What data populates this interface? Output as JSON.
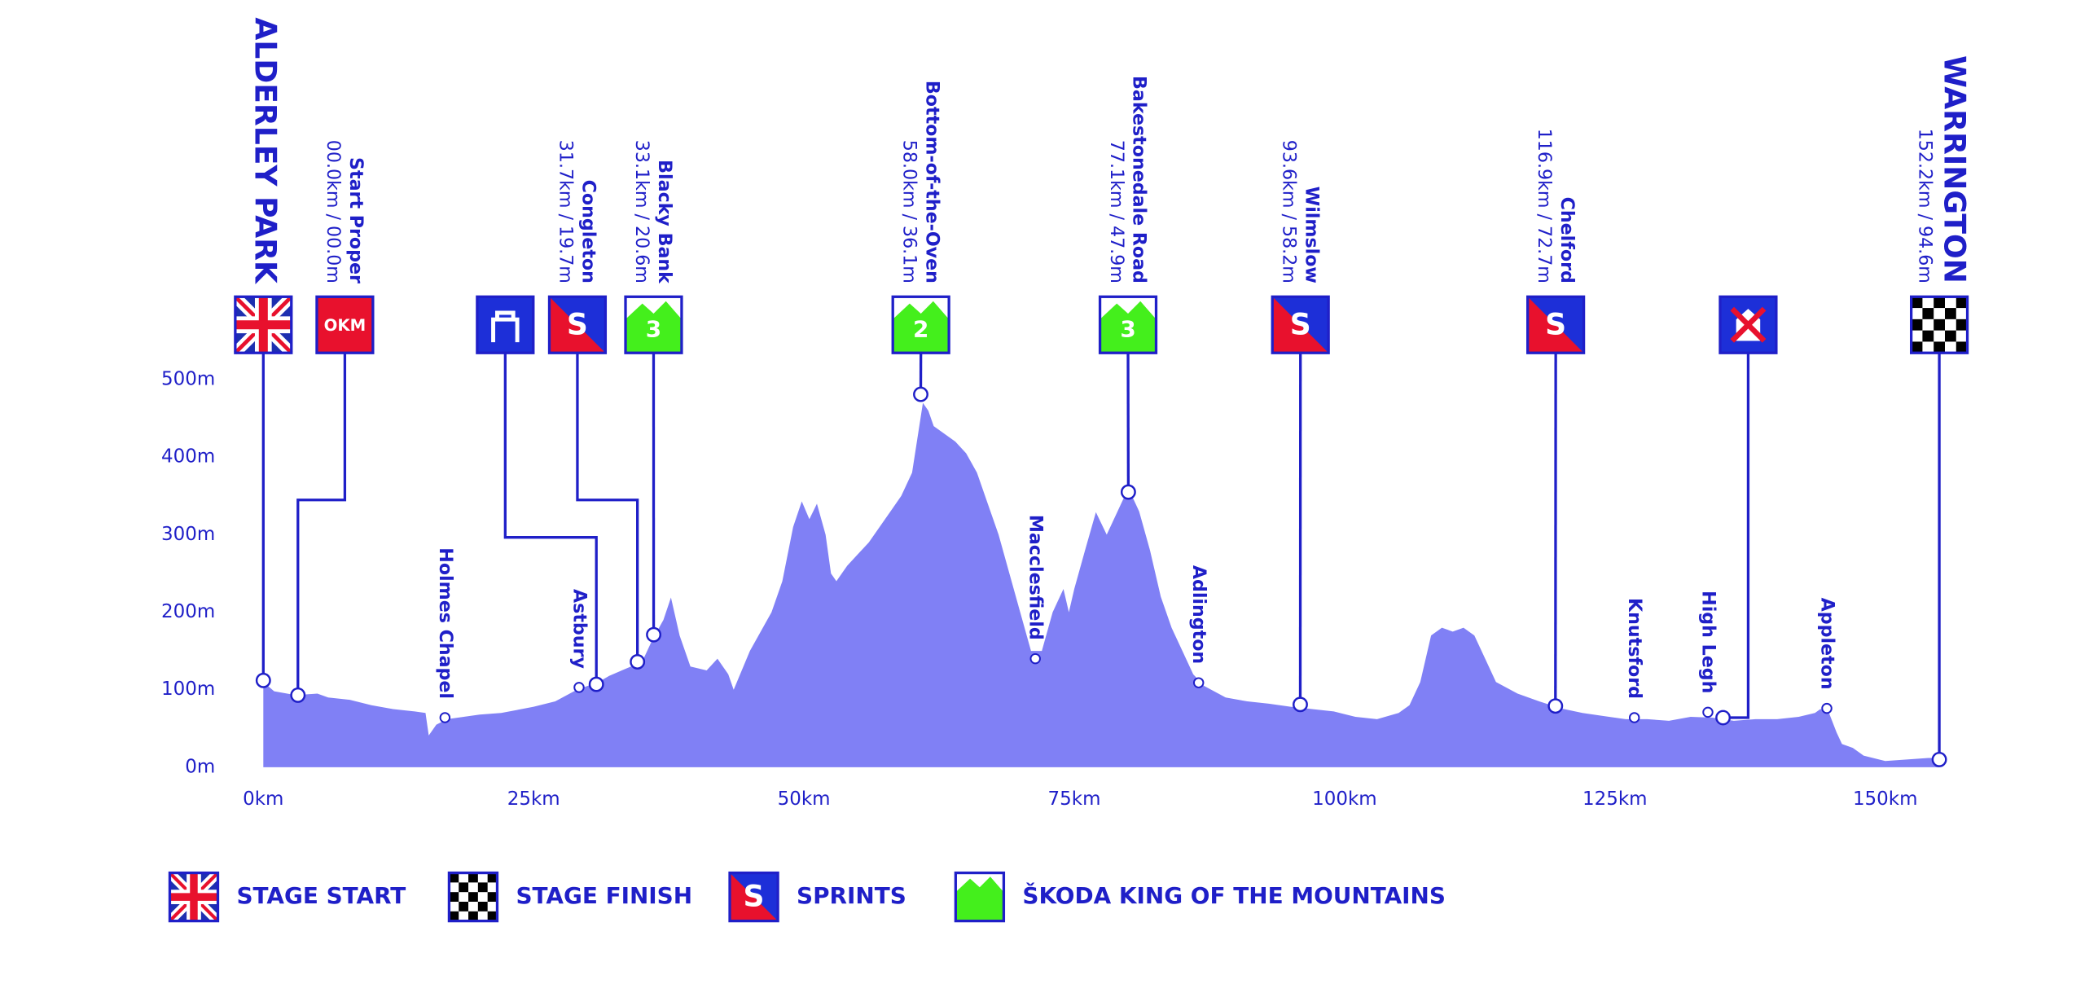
{
  "chart_data": {
    "type": "area",
    "color": "#8080f5",
    "line_color": "#1f1fc8",
    "xlim": [
      0,
      155
    ],
    "ylim": [
      0,
      500
    ],
    "xticks": [
      {
        "value": 0,
        "label": "0km"
      },
      {
        "value": 25,
        "label": "25km"
      },
      {
        "value": 50,
        "label": "50km"
      },
      {
        "value": 75,
        "label": "75km"
      },
      {
        "value": 100,
        "label": "100km"
      },
      {
        "value": 125,
        "label": "125km"
      },
      {
        "value": 150,
        "label": "150km"
      }
    ],
    "yticks": [
      {
        "value": 0,
        "label": "0m"
      },
      {
        "value": 100,
        "label": "100m"
      },
      {
        "value": 200,
        "label": "200m"
      },
      {
        "value": 300,
        "label": "300m"
      },
      {
        "value": 400,
        "label": "400m"
      },
      {
        "value": 500,
        "label": "500m"
      }
    ],
    "x": [
      0,
      1,
      3,
      5,
      6,
      8,
      10,
      12,
      14,
      15,
      15.3,
      16,
      17,
      20,
      22,
      25,
      27,
      29,
      30,
      31,
      32,
      34,
      35,
      36,
      37,
      37.7,
      38.5,
      39.5,
      41,
      42,
      43,
      43.5,
      45,
      47,
      48,
      49,
      49.8,
      50.5,
      51.2,
      52,
      52.5,
      53,
      54,
      55,
      56,
      58,
      59,
      60,
      61,
      61.5,
      62,
      63,
      64,
      65,
      66,
      67,
      68,
      69,
      70,
      71,
      72,
      73,
      74,
      74.5,
      75,
      76,
      77,
      78,
      79,
      80,
      81,
      82,
      83,
      84,
      85,
      86,
      87,
      89,
      91,
      93,
      95,
      97,
      99,
      101,
      103,
      105,
      106,
      107,
      108,
      109,
      110,
      111,
      112,
      113,
      114,
      116,
      118,
      120,
      122,
      124,
      126,
      128,
      130,
      132,
      134,
      136,
      138,
      140,
      142,
      143.5,
      144,
      144.8,
      145.5,
      146,
      147,
      148,
      150,
      152,
      154,
      155
    ],
    "values": [
      110,
      98,
      93,
      95,
      90,
      87,
      80,
      75,
      72,
      70,
      41,
      55,
      62,
      68,
      70,
      78,
      85,
      100,
      105,
      110,
      118,
      130,
      135,
      165,
      190,
      219,
      170,
      130,
      125,
      140,
      120,
      100,
      150,
      200,
      240,
      310,
      343,
      320,
      340,
      300,
      250,
      240,
      260,
      275,
      290,
      330,
      350,
      380,
      470,
      460,
      440,
      430,
      420,
      405,
      380,
      340,
      300,
      250,
      200,
      150,
      150,
      200,
      230,
      200,
      230,
      280,
      329,
      300,
      330,
      360,
      330,
      280,
      220,
      180,
      150,
      120,
      105,
      90,
      85,
      82,
      78,
      75,
      72,
      65,
      62,
      70,
      80,
      110,
      170,
      180,
      175,
      180,
      170,
      140,
      110,
      95,
      85,
      76,
      70,
      66,
      62,
      62,
      60,
      65,
      64,
      60,
      62,
      62,
      65,
      70,
      75,
      70,
      45,
      30,
      25,
      15,
      8,
      10,
      12,
      12
    ],
    "markers": [
      {
        "name": "ALDERLEY PARK",
        "icon": "flag",
        "x": 0,
        "y": 112
      },
      {
        "name": "Start Proper",
        "detail": "00.0km / 00.0m",
        "icon": "okm",
        "badge": "OKM",
        "x": 3.2,
        "y": 93
      },
      {
        "icon": "feed",
        "x": 30.8,
        "y": 107
      },
      {
        "name": "Congleton",
        "detail": "31.7km / 19.7m",
        "icon": "sprint",
        "badge": "S",
        "x": 34.6,
        "y": 136
      },
      {
        "name": "Blacky Bank",
        "detail": "33.1km / 20.6m",
        "icon": "kom",
        "badge": "3",
        "x": 36.1,
        "y": 171
      },
      {
        "name": "Bottom-of-the-Oven",
        "detail": "58.0km / 36.1m",
        "icon": "kom",
        "badge": "2",
        "x": 60.8,
        "y": 481
      },
      {
        "name": "Bakestonedale Road",
        "detail": "77.1km / 47.9m",
        "icon": "kom",
        "badge": "3",
        "x": 80.0,
        "y": 355
      },
      {
        "name": "Wilmslow",
        "detail": "93.6km / 58.2m",
        "icon": "sprint",
        "badge": "S",
        "x": 95.9,
        "y": 81
      },
      {
        "name": "Chelford",
        "detail": "116.9km / 72.7m",
        "icon": "sprint",
        "badge": "S",
        "x": 119.5,
        "y": 79
      },
      {
        "icon": "sprint-cancelled",
        "x": 135.0,
        "y": 64
      },
      {
        "name": "WARRINGTON",
        "detail": "152.2km / 94.6m",
        "icon": "finish",
        "x": 155.0,
        "y": 10
      }
    ],
    "towns": [
      {
        "name": "Holmes Chapel",
        "x": 16.8,
        "y": 64
      },
      {
        "name": "Astbury",
        "x": 29.2,
        "y": 103
      },
      {
        "name": "Macclesfield",
        "x": 71.4,
        "y": 140
      },
      {
        "name": "Adlington",
        "x": 86.5,
        "y": 109
      },
      {
        "name": "Knutsford",
        "x": 126.8,
        "y": 64
      },
      {
        "name": "High Legh",
        "x": 133.6,
        "y": 71
      },
      {
        "name": "Appleton",
        "x": 144.6,
        "y": 76
      }
    ],
    "legend": [
      {
        "label": "STAGE START",
        "icon": "flag"
      },
      {
        "label": "STAGE FINISH",
        "icon": "finish"
      },
      {
        "label": "SPRINTS",
        "icon": "sprint",
        "badge": "S"
      },
      {
        "label": "ŠKODA KING OF THE MOUNTAINS",
        "icon": "kom"
      }
    ]
  }
}
